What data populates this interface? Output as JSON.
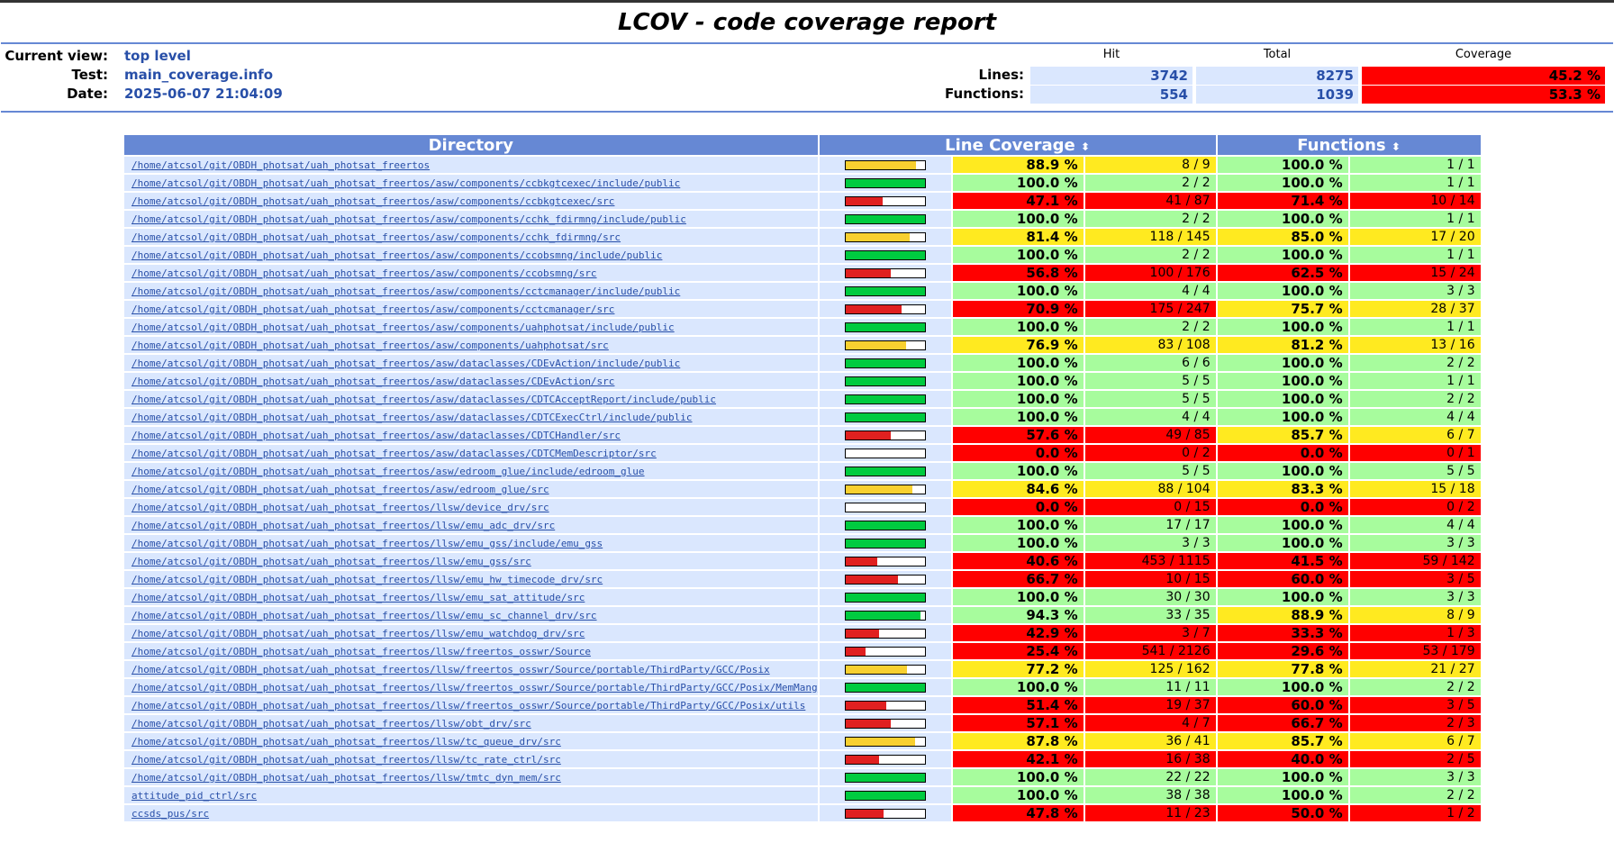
{
  "page": {
    "title": "LCOV - code coverage report"
  },
  "header": {
    "current_view_label": "Current view:",
    "current_view": "top level",
    "test_label": "Test:",
    "test": "main_coverage.info",
    "date_label": "Date:",
    "date": "2025-06-07 21:04:09",
    "col_hit": "Hit",
    "col_total": "Total",
    "col_coverage": "Coverage",
    "lines_label": "Lines:",
    "lines_hit": "3742",
    "lines_total": "8275",
    "lines_cov": "45.2 %",
    "functions_label": "Functions:",
    "functions_hit": "554",
    "functions_total": "1039",
    "functions_cov": "53.3 %"
  },
  "table": {
    "col_directory": "Directory",
    "col_line_coverage": "Line Coverage",
    "col_functions": "Functions",
    "sort_icon": "⬍",
    "colors": {
      "hi": "#a7fc9d",
      "med": "#ffea20",
      "lo": "#ff0000"
    },
    "rows": [
      {
        "dir": "/home/atcsol/git/OBDH_photsat/uah_photsat_freertos",
        "lp": 88.9,
        "lpct": "88.9 %",
        "lnum": "8 / 9",
        "fpct": "100.0 %",
        "fnum": "1 / 1"
      },
      {
        "dir": "/home/atcsol/git/OBDH_photsat/uah_photsat_freertos/asw/components/ccbkgtcexec/include/public",
        "lp": 100,
        "lpct": "100.0 %",
        "lnum": "2 / 2",
        "fpct": "100.0 %",
        "fnum": "1 / 1"
      },
      {
        "dir": "/home/atcsol/git/OBDH_photsat/uah_photsat_freertos/asw/components/ccbkgtcexec/src",
        "lp": 47.1,
        "lpct": "47.1 %",
        "lnum": "41 / 87",
        "fpct": "71.4 %",
        "fnum": "10 / 14"
      },
      {
        "dir": "/home/atcsol/git/OBDH_photsat/uah_photsat_freertos/asw/components/cchk_fdirmng/include/public",
        "lp": 100,
        "lpct": "100.0 %",
        "lnum": "2 / 2",
        "fpct": "100.0 %",
        "fnum": "1 / 1"
      },
      {
        "dir": "/home/atcsol/git/OBDH_photsat/uah_photsat_freertos/asw/components/cchk_fdirmng/src",
        "lp": 81.4,
        "lpct": "81.4 %",
        "lnum": "118 / 145",
        "fpct": "85.0 %",
        "fnum": "17 / 20"
      },
      {
        "dir": "/home/atcsol/git/OBDH_photsat/uah_photsat_freertos/asw/components/ccobsmng/include/public",
        "lp": 100,
        "lpct": "100.0 %",
        "lnum": "2 / 2",
        "fpct": "100.0 %",
        "fnum": "1 / 1"
      },
      {
        "dir": "/home/atcsol/git/OBDH_photsat/uah_photsat_freertos/asw/components/ccobsmng/src",
        "lp": 56.8,
        "lpct": "56.8 %",
        "lnum": "100 / 176",
        "fpct": "62.5 %",
        "fnum": "15 / 24"
      },
      {
        "dir": "/home/atcsol/git/OBDH_photsat/uah_photsat_freertos/asw/components/cctcmanager/include/public",
        "lp": 100,
        "lpct": "100.0 %",
        "lnum": "4 / 4",
        "fpct": "100.0 %",
        "fnum": "3 / 3"
      },
      {
        "dir": "/home/atcsol/git/OBDH_photsat/uah_photsat_freertos/asw/components/cctcmanager/src",
        "lp": 70.9,
        "lpct": "70.9 %",
        "lnum": "175 / 247",
        "fpct": "75.7 %",
        "fnum": "28 / 37"
      },
      {
        "dir": "/home/atcsol/git/OBDH_photsat/uah_photsat_freertos/asw/components/uahphotsat/include/public",
        "lp": 100,
        "lpct": "100.0 %",
        "lnum": "2 / 2",
        "fpct": "100.0 %",
        "fnum": "1 / 1"
      },
      {
        "dir": "/home/atcsol/git/OBDH_photsat/uah_photsat_freertos/asw/components/uahphotsat/src",
        "lp": 76.9,
        "lpct": "76.9 %",
        "lnum": "83 / 108",
        "fpct": "81.2 %",
        "fnum": "13 / 16"
      },
      {
        "dir": "/home/atcsol/git/OBDH_photsat/uah_photsat_freertos/asw/dataclasses/CDEvAction/include/public",
        "lp": 100,
        "lpct": "100.0 %",
        "lnum": "6 / 6",
        "fpct": "100.0 %",
        "fnum": "2 / 2"
      },
      {
        "dir": "/home/atcsol/git/OBDH_photsat/uah_photsat_freertos/asw/dataclasses/CDEvAction/src",
        "lp": 100,
        "lpct": "100.0 %",
        "lnum": "5 / 5",
        "fpct": "100.0 %",
        "fnum": "1 / 1"
      },
      {
        "dir": "/home/atcsol/git/OBDH_photsat/uah_photsat_freertos/asw/dataclasses/CDTCAcceptReport/include/public",
        "lp": 100,
        "lpct": "100.0 %",
        "lnum": "5 / 5",
        "fpct": "100.0 %",
        "fnum": "2 / 2"
      },
      {
        "dir": "/home/atcsol/git/OBDH_photsat/uah_photsat_freertos/asw/dataclasses/CDTCExecCtrl/include/public",
        "lp": 100,
        "lpct": "100.0 %",
        "lnum": "4 / 4",
        "fpct": "100.0 %",
        "fnum": "4 / 4"
      },
      {
        "dir": "/home/atcsol/git/OBDH_photsat/uah_photsat_freertos/asw/dataclasses/CDTCHandler/src",
        "lp": 57.6,
        "lpct": "57.6 %",
        "lnum": "49 / 85",
        "fpct": "85.7 %",
        "fnum": "6 / 7"
      },
      {
        "dir": "/home/atcsol/git/OBDH_photsat/uah_photsat_freertos/asw/dataclasses/CDTCMemDescriptor/src",
        "lp": 0,
        "lpct": "0.0 %",
        "lnum": "0 / 2",
        "fpct": "0.0 %",
        "fnum": "0 / 1"
      },
      {
        "dir": "/home/atcsol/git/OBDH_photsat/uah_photsat_freertos/asw/edroom_glue/include/edroom_glue",
        "lp": 100,
        "lpct": "100.0 %",
        "lnum": "5 / 5",
        "fpct": "100.0 %",
        "fnum": "5 / 5"
      },
      {
        "dir": "/home/atcsol/git/OBDH_photsat/uah_photsat_freertos/asw/edroom_glue/src",
        "lp": 84.6,
        "lpct": "84.6 %",
        "lnum": "88 / 104",
        "fpct": "83.3 %",
        "fnum": "15 / 18"
      },
      {
        "dir": "/home/atcsol/git/OBDH_photsat/uah_photsat_freertos/llsw/device_drv/src",
        "lp": 0,
        "lpct": "0.0 %",
        "lnum": "0 / 15",
        "fpct": "0.0 %",
        "fnum": "0 / 2"
      },
      {
        "dir": "/home/atcsol/git/OBDH_photsat/uah_photsat_freertos/llsw/emu_adc_drv/src",
        "lp": 100,
        "lpct": "100.0 %",
        "lnum": "17 / 17",
        "fpct": "100.0 %",
        "fnum": "4 / 4"
      },
      {
        "dir": "/home/atcsol/git/OBDH_photsat/uah_photsat_freertos/llsw/emu_gss/include/emu_gss",
        "lp": 100,
        "lpct": "100.0 %",
        "lnum": "3 / 3",
        "fpct": "100.0 %",
        "fnum": "3 / 3"
      },
      {
        "dir": "/home/atcsol/git/OBDH_photsat/uah_photsat_freertos/llsw/emu_gss/src",
        "lp": 40.6,
        "lpct": "40.6 %",
        "lnum": "453 / 1115",
        "fpct": "41.5 %",
        "fnum": "59 / 142"
      },
      {
        "dir": "/home/atcsol/git/OBDH_photsat/uah_photsat_freertos/llsw/emu_hw_timecode_drv/src",
        "lp": 66.7,
        "lpct": "66.7 %",
        "lnum": "10 / 15",
        "fpct": "60.0 %",
        "fnum": "3 / 5"
      },
      {
        "dir": "/home/atcsol/git/OBDH_photsat/uah_photsat_freertos/llsw/emu_sat_attitude/src",
        "lp": 100,
        "lpct": "100.0 %",
        "lnum": "30 / 30",
        "fpct": "100.0 %",
        "fnum": "3 / 3"
      },
      {
        "dir": "/home/atcsol/git/OBDH_photsat/uah_photsat_freertos/llsw/emu_sc_channel_drv/src",
        "lp": 94.3,
        "lpct": "94.3 %",
        "lnum": "33 / 35",
        "fpct": "88.9 %",
        "fnum": "8 / 9"
      },
      {
        "dir": "/home/atcsol/git/OBDH_photsat/uah_photsat_freertos/llsw/emu_watchdog_drv/src",
        "lp": 42.9,
        "lpct": "42.9 %",
        "lnum": "3 / 7",
        "fpct": "33.3 %",
        "fnum": "1 / 3"
      },
      {
        "dir": "/home/atcsol/git/OBDH_photsat/uah_photsat_freertos/llsw/freertos_osswr/Source",
        "lp": 25.4,
        "lpct": "25.4 %",
        "lnum": "541 / 2126",
        "fpct": "29.6 %",
        "fnum": "53 / 179"
      },
      {
        "dir": "/home/atcsol/git/OBDH_photsat/uah_photsat_freertos/llsw/freertos_osswr/Source/portable/ThirdParty/GCC/Posix",
        "lp": 77.2,
        "lpct": "77.2 %",
        "lnum": "125 / 162",
        "fpct": "77.8 %",
        "fnum": "21 / 27"
      },
      {
        "dir": "/home/atcsol/git/OBDH_photsat/uah_photsat_freertos/llsw/freertos_osswr/Source/portable/ThirdParty/GCC/Posix/MemMang",
        "lp": 100,
        "lpct": "100.0 %",
        "lnum": "11 / 11",
        "fpct": "100.0 %",
        "fnum": "2 / 2"
      },
      {
        "dir": "/home/atcsol/git/OBDH_photsat/uah_photsat_freertos/llsw/freertos_osswr/Source/portable/ThirdParty/GCC/Posix/utils",
        "lp": 51.4,
        "lpct": "51.4 %",
        "lnum": "19 / 37",
        "fpct": "60.0 %",
        "fnum": "3 / 5"
      },
      {
        "dir": "/home/atcsol/git/OBDH_photsat/uah_photsat_freertos/llsw/obt_drv/src",
        "lp": 57.1,
        "lpct": "57.1 %",
        "lnum": "4 / 7",
        "fpct": "66.7 %",
        "fnum": "2 / 3"
      },
      {
        "dir": "/home/atcsol/git/OBDH_photsat/uah_photsat_freertos/llsw/tc_queue_drv/src",
        "lp": 87.8,
        "lpct": "87.8 %",
        "lnum": "36 / 41",
        "fpct": "85.7 %",
        "fnum": "6 / 7"
      },
      {
        "dir": "/home/atcsol/git/OBDH_photsat/uah_photsat_freertos/llsw/tc_rate_ctrl/src",
        "lp": 42.1,
        "lpct": "42.1 %",
        "lnum": "16 / 38",
        "fpct": "40.0 %",
        "fnum": "2 / 5"
      },
      {
        "dir": "/home/atcsol/git/OBDH_photsat/uah_photsat_freertos/llsw/tmtc_dyn_mem/src",
        "lp": 100,
        "lpct": "100.0 %",
        "lnum": "22 / 22",
        "fpct": "100.0 %",
        "fnum": "3 / 3"
      },
      {
        "dir": "attitude_pid_ctrl/src",
        "lp": 100,
        "lpct": "100.0 %",
        "lnum": "38 / 38",
        "fpct": "100.0 %",
        "fnum": "2 / 2"
      },
      {
        "dir": "ccsds_pus/src",
        "lp": 47.8,
        "lpct": "47.8 %",
        "lnum": "11 / 23",
        "fpct": "50.0 %",
        "fnum": "1 / 2"
      }
    ]
  }
}
